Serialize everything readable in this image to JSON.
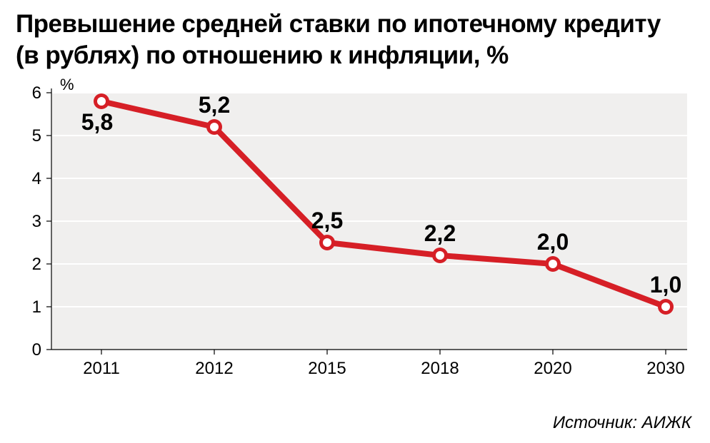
{
  "title_line1": "Превышение средней ставки по ипотечному кредиту",
  "title_line2": "(в рублях) по отношению к инфляции, %",
  "source": "Источник: АИЖК",
  "chart": {
    "type": "line",
    "unit_label": "%",
    "background_color": "#f0efee",
    "grid_color": "#ffffff",
    "line_color": "#d61f26",
    "line_width": 8,
    "marker_radius_outer": 11,
    "marker_radius_inner": 6,
    "marker_outer_color": "#d61f26",
    "marker_inner_color": "#ffffff",
    "title_fontsize": 35,
    "title_weight": 700,
    "tick_fontsize": 24,
    "data_label_fontsize": 32,
    "data_label_weight": 700,
    "source_fontsize": 24,
    "ylim": [
      0,
      6
    ],
    "ytick_step": 1,
    "categories": [
      "2011",
      "2012",
      "2015",
      "2018",
      "2020",
      "2030"
    ],
    "values": [
      5.8,
      5.2,
      2.5,
      2.2,
      2.0,
      1.0
    ],
    "value_labels": [
      "5,8",
      "5,2",
      "2,5",
      "2,2",
      "2,0",
      "1,0"
    ],
    "label_positions": [
      "below",
      "above",
      "above",
      "above",
      "above",
      "above"
    ]
  }
}
